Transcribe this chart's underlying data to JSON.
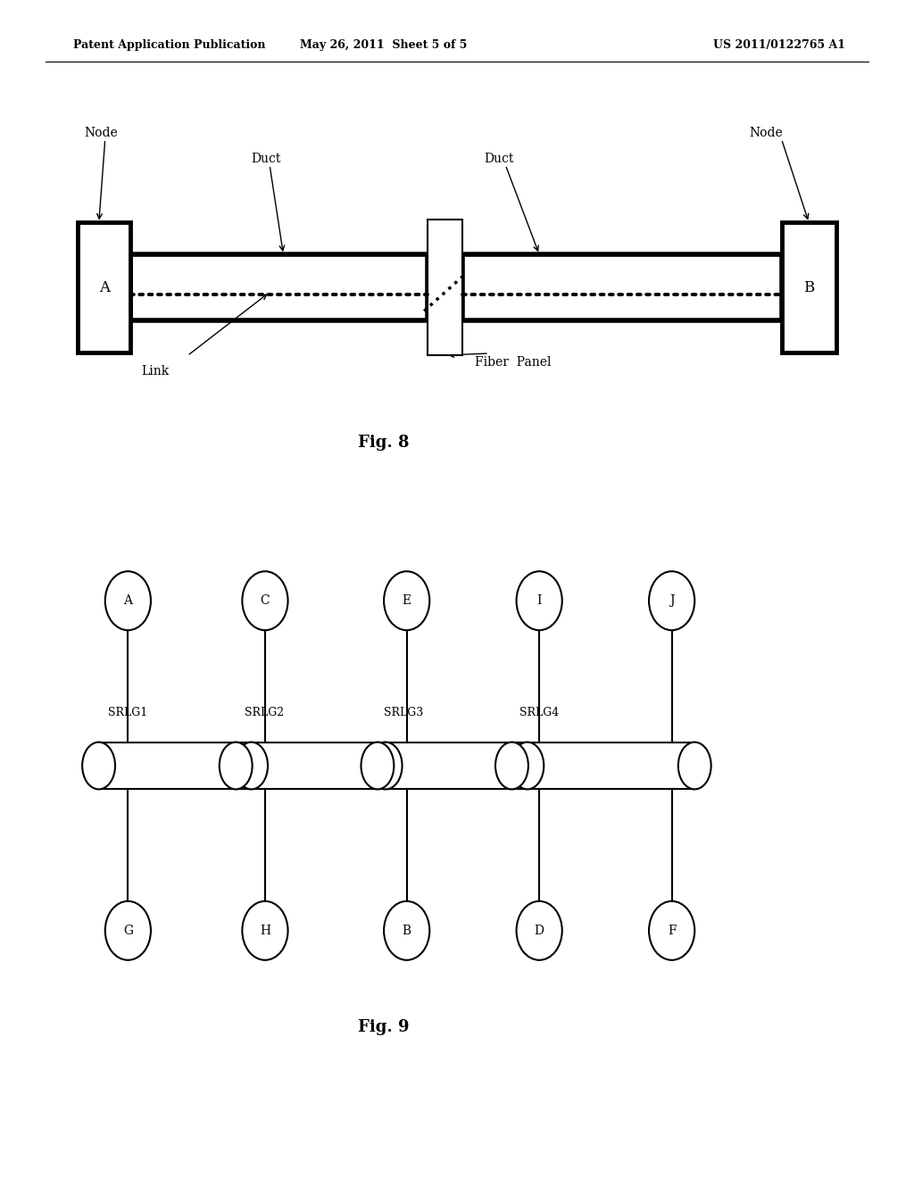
{
  "bg_color": "#ffffff",
  "header_left": "Patent Application Publication",
  "header_center": "May 26, 2011  Sheet 5 of 5",
  "header_right": "US 2011/0122765 A1",
  "fig8_caption": "Fig. 8",
  "fig9_caption": "Fig. 9"
}
